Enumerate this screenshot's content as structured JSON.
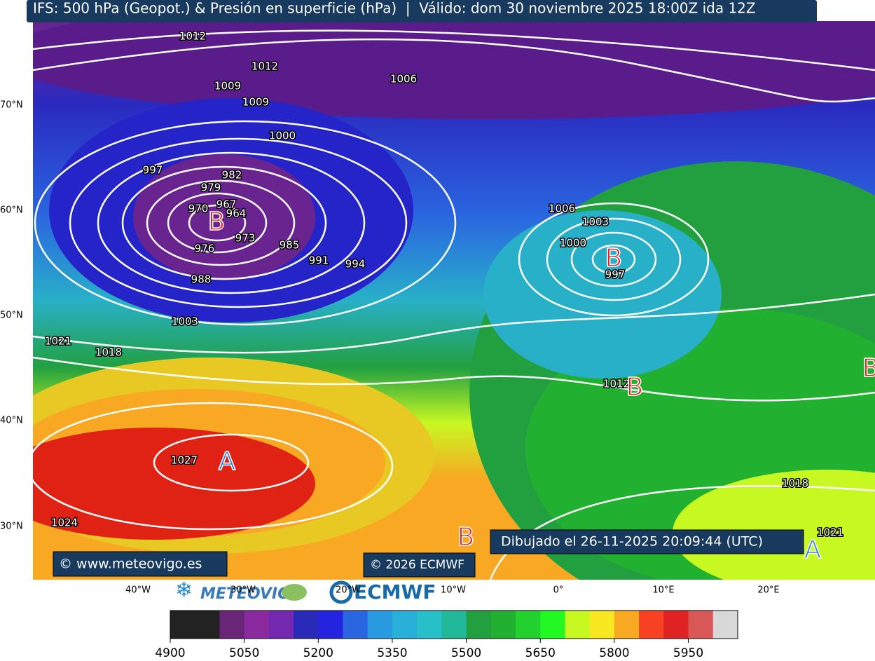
{
  "header": {
    "title": "IFS: 500 hPa (Geopot.) & Presión en superficie (hPa)  |  Válido: dom 30 noviembre 2025 18:00Z ida 12Z"
  },
  "map": {
    "lat_labels": [
      "70°N",
      "60°N",
      "50°N",
      "40°N",
      "30°N"
    ],
    "lon_labels": [
      "40°W",
      "30°W",
      "20°W",
      "10°W",
      "0°",
      "10°E",
      "20°E"
    ],
    "isobar_labels": [
      1012,
      1012,
      1006,
      1009,
      1009,
      1000,
      997,
      982,
      979,
      970,
      967,
      964,
      973,
      976,
      985,
      991,
      994,
      988,
      1003,
      1021,
      1018,
      1006,
      1003,
      1000,
      997,
      1012,
      1027,
      1024,
      1018,
      1021
    ],
    "centers": [
      "B",
      "B",
      "B",
      "B",
      "A",
      "B",
      "A"
    ]
  },
  "footer": {
    "site": "© www.meteovigo.es",
    "copyright": "© 2026 ECMWF",
    "drawn": "Dibujado el 26-11-2025 20:09:44 (UTC)",
    "logo_meteovigo": "METEOVIGO",
    "logo_ecmwf": "ECMWF"
  },
  "colorbar": {
    "lim": [
      4900,
      6050
    ],
    "ticks": [
      4900,
      5050,
      5200,
      5350,
      5500,
      5650,
      5800,
      5950
    ],
    "colors": [
      "#222222",
      "#222222",
      "#6a2478",
      "#8a2a9e",
      "#7428b0",
      "#2a2ab8",
      "#2424e0",
      "#2a66e0",
      "#2a9ae0",
      "#28b0d8",
      "#28c0c8",
      "#22b89a",
      "#22a040",
      "#22b030",
      "#22d030",
      "#22f822",
      "#c8f822",
      "#f8e822",
      "#f8a822",
      "#f84022",
      "#e02222",
      "#d85858",
      "#d8d8d8"
    ]
  }
}
